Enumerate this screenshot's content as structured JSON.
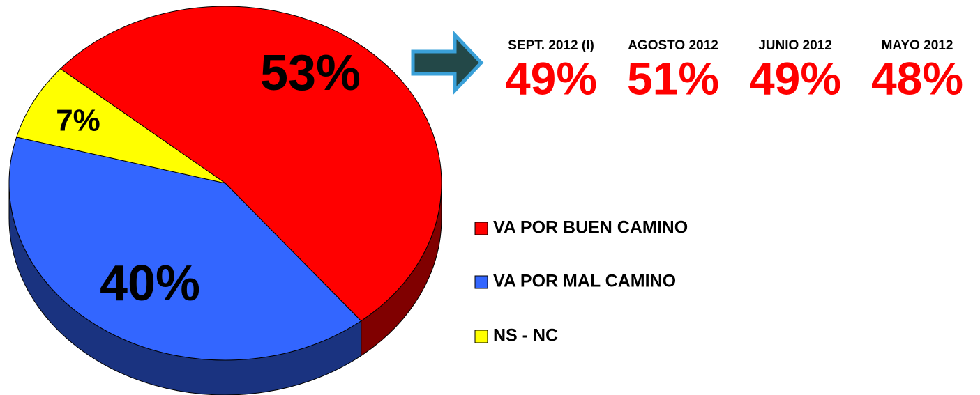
{
  "chart_data": {
    "type": "pie",
    "categories": [
      "VA POR BUEN CAMINO",
      "VA POR MAL CAMINO",
      "NS - NC"
    ],
    "values": [
      53,
      40,
      7
    ],
    "value_labels": [
      "53%",
      "40%",
      "7%"
    ],
    "colors": [
      "#ff0000",
      "#3366ff",
      "#ffff00"
    ],
    "legend": "right",
    "comparisons": [
      {
        "period": "SEPT. 2012 (I)",
        "value": 49,
        "label": "49%"
      },
      {
        "period": "AGOSTO 2012",
        "value": 51,
        "label": "51%"
      },
      {
        "period": "JUNIO 2012",
        "value": 49,
        "label": "49%"
      },
      {
        "period": "MAYO 2012",
        "value": 48,
        "label": "48%"
      }
    ]
  }
}
